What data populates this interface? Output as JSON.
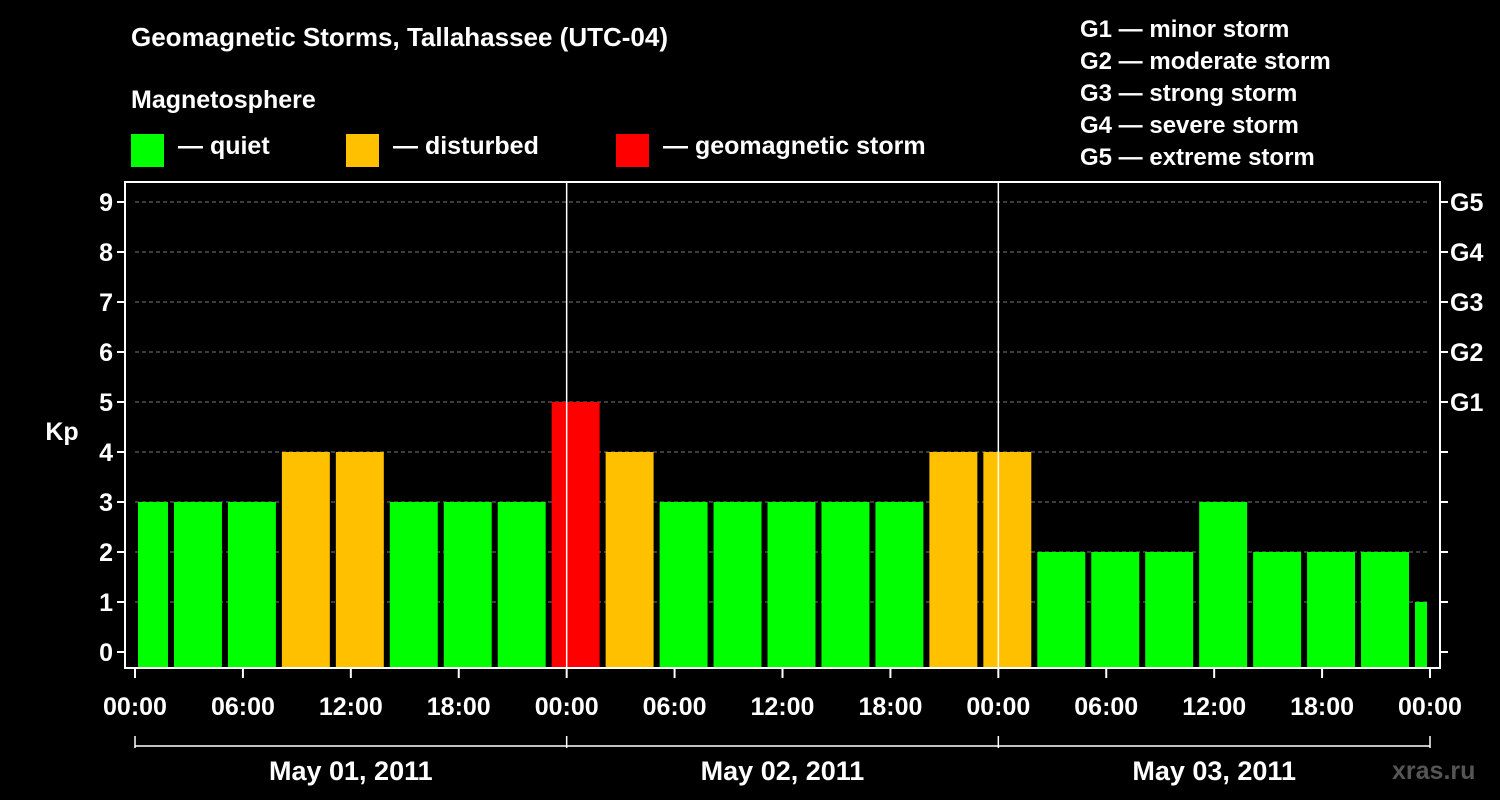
{
  "header": {
    "title": "Geomagnetic Storms, Tallahassee (UTC-04)",
    "magnetosphere_title": "Magnetosphere"
  },
  "legend": [
    {
      "label": "— quiet",
      "color": "#00ff00"
    },
    {
      "label": "— disturbed",
      "color": "#ffc000"
    },
    {
      "label": "— geomagnetic storm",
      "color": "#ff0000"
    }
  ],
  "storm_scale": [
    "G1 — minor storm",
    "G2 — moderate storm",
    "G3 — strong storm",
    "G4 — severe storm",
    "G5 — extreme storm"
  ],
  "watermark": "xras.ru",
  "chart_data": {
    "type": "bar",
    "ylabel": "Kp",
    "ylim": [
      0,
      9
    ],
    "yticks": [
      0,
      1,
      2,
      3,
      4,
      5,
      6,
      7,
      8,
      9
    ],
    "right_axis_labels": [
      {
        "kp": 5,
        "label": "G1"
      },
      {
        "kp": 6,
        "label": "G2"
      },
      {
        "kp": 7,
        "label": "G3"
      },
      {
        "kp": 8,
        "label": "G4"
      },
      {
        "kp": 9,
        "label": "G5"
      }
    ],
    "x_tick_labels": [
      "00:00",
      "06:00",
      "12:00",
      "18:00",
      "00:00",
      "06:00",
      "12:00",
      "18:00",
      "00:00",
      "06:00",
      "12:00",
      "18:00",
      "00:00"
    ],
    "date_labels": [
      "May 01, 2011",
      "May 02, 2011",
      "May 03, 2011"
    ],
    "bar_interval_hours": 3,
    "first_bar_start_hours": -1,
    "values": [
      3,
      3,
      3,
      4,
      4,
      3,
      3,
      3,
      5,
      4,
      3,
      3,
      3,
      3,
      3,
      4,
      4,
      2,
      2,
      2,
      3,
      2,
      2,
      2,
      1
    ],
    "categories": [
      "quiet",
      "quiet",
      "quiet",
      "disturbed",
      "disturbed",
      "quiet",
      "quiet",
      "quiet",
      "storm",
      "disturbed",
      "quiet",
      "quiet",
      "quiet",
      "quiet",
      "quiet",
      "disturbed",
      "disturbed",
      "quiet",
      "quiet",
      "quiet",
      "quiet",
      "quiet",
      "quiet",
      "quiet",
      "quiet"
    ],
    "colors": {
      "quiet": "#00ff00",
      "disturbed": "#ffc000",
      "storm": "#ff0000"
    },
    "grid": "dashed-horizontal"
  }
}
